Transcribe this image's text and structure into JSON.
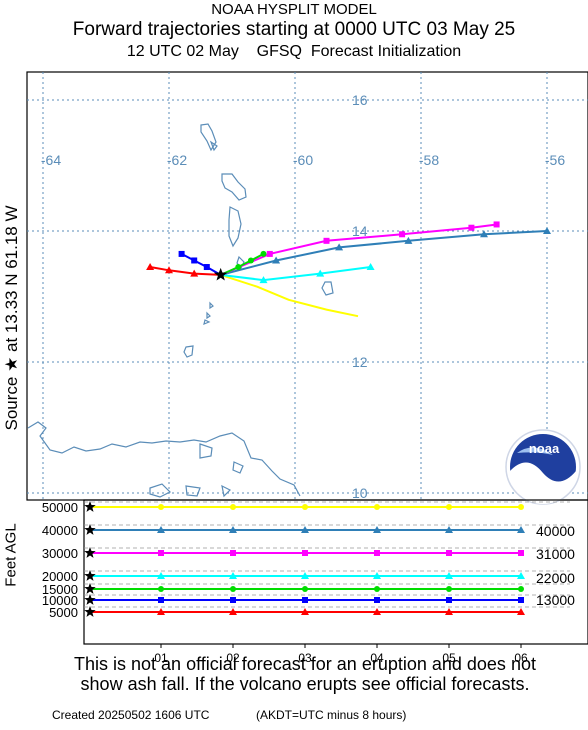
{
  "header": {
    "title_line1": "NOAA HYSPLIT MODEL",
    "title_line2": "Forward trajectories starting at 0000 UTC 03 May 25",
    "title_line3": "12 UTC 02 May    GFSQ  Forecast Initialization"
  },
  "side_label": "Source ★ at    13.33 N   61.18 W",
  "altitude_axis_label": "Feet AGL",
  "logo_text": "noaa",
  "disclaimer": {
    "line1": "This is not an official forecast for an eruption and does not",
    "line2": "show ash fall. If the volcano erupts see official forecasts."
  },
  "footer": {
    "created": "Created 20250502 1606 UTC",
    "timezone_note": "(AKDT=UTC minus 8 hours)"
  },
  "colors": {
    "graticule": "#5b8db8",
    "coastline": "#5b8db8",
    "yellow": "#ffff00",
    "steelblue": "#2f7fb7",
    "magenta": "#ff00ff",
    "cyan": "#00ffff",
    "green": "#00dd00",
    "blue": "#0000ff",
    "red": "#ff0000",
    "noaa_blue": "#1f3f9f"
  },
  "chart_data": [
    {
      "type": "scatter",
      "subtype": "trajectory-map",
      "source": {
        "lat": 13.33,
        "lon": -61.18
      },
      "lon_ticks": [
        -64,
        -62,
        -60,
        -58,
        -56
      ],
      "lat_ticks": [
        16,
        14,
        12,
        10
      ],
      "lon_range": [
        -64.3,
        -55.3
      ],
      "lat_range": [
        9.9,
        16.5
      ],
      "series": [
        {
          "altitude_ft": 50000,
          "color": "yellow",
          "marker": "none",
          "points": [
            [
              -61.18,
              13.33
            ],
            [
              -60.6,
              13.15
            ],
            [
              -60.1,
              12.95
            ],
            [
              -59.5,
              12.8
            ],
            [
              -59.0,
              12.7
            ]
          ]
        },
        {
          "altitude_ft": 40000,
          "color": "steelblue",
          "marker": "triangle",
          "points": [
            [
              -61.18,
              13.33
            ],
            [
              -60.3,
              13.55
            ],
            [
              -59.3,
              13.75
            ],
            [
              -58.2,
              13.85
            ],
            [
              -57.0,
              13.95
            ],
            [
              -56.0,
              14.0
            ]
          ]
        },
        {
          "altitude_ft": 30000,
          "color": "magenta",
          "marker": "square",
          "points": [
            [
              -61.18,
              13.33
            ],
            [
              -60.4,
              13.65
            ],
            [
              -59.5,
              13.85
            ],
            [
              -58.3,
              13.95
            ],
            [
              -57.2,
              14.05
            ],
            [
              -56.8,
              14.1
            ]
          ]
        },
        {
          "altitude_ft": 20000,
          "color": "cyan",
          "marker": "triangle",
          "points": [
            [
              -61.18,
              13.33
            ],
            [
              -60.5,
              13.25
            ],
            [
              -59.6,
              13.35
            ],
            [
              -58.8,
              13.45
            ]
          ]
        },
        {
          "altitude_ft": 15000,
          "color": "green",
          "marker": "circle",
          "points": [
            [
              -61.18,
              13.33
            ],
            [
              -60.9,
              13.45
            ],
            [
              -60.7,
              13.55
            ],
            [
              -60.5,
              13.65
            ]
          ]
        },
        {
          "altitude_ft": 10000,
          "color": "blue",
          "marker": "square",
          "points": [
            [
              -61.18,
              13.33
            ],
            [
              -61.4,
              13.45
            ],
            [
              -61.6,
              13.55
            ],
            [
              -61.8,
              13.65
            ]
          ]
        },
        {
          "altitude_ft": 5000,
          "color": "red",
          "marker": "triangle",
          "points": [
            [
              -61.18,
              13.33
            ],
            [
              -61.6,
              13.35
            ],
            [
              -62.0,
              13.4
            ],
            [
              -62.3,
              13.45
            ]
          ]
        }
      ]
    },
    {
      "type": "line",
      "subtype": "altitude-vs-time",
      "x_ticks": [
        "01",
        "02",
        "03",
        "04",
        "05",
        "06"
      ],
      "y_ticks_left": [
        50000,
        40000,
        30000,
        20000,
        15000,
        10000,
        5000
      ],
      "y_ticks_right": [
        40000,
        31000,
        22000,
        13000
      ],
      "ylabel": "Feet AGL",
      "series": [
        {
          "start_ft": 50000,
          "color": "yellow",
          "marker": "circle",
          "values": [
            50000,
            50000,
            50000,
            50000,
            50000,
            50000
          ]
        },
        {
          "start_ft": 40000,
          "color": "steelblue",
          "marker": "triangle",
          "values": [
            40000,
            40000,
            40000,
            40000,
            40000,
            40000
          ]
        },
        {
          "start_ft": 30000,
          "color": "magenta",
          "marker": "square",
          "values": [
            30000,
            30000,
            30000,
            30000,
            30000,
            30000
          ]
        },
        {
          "start_ft": 20000,
          "color": "cyan",
          "marker": "triangle",
          "values": [
            20000,
            20000,
            20000,
            20000,
            20000,
            20000
          ]
        },
        {
          "start_ft": 15000,
          "color": "green",
          "marker": "circle",
          "values": [
            15000,
            15000,
            15000,
            15000,
            15000,
            15000
          ]
        },
        {
          "start_ft": 10000,
          "color": "blue",
          "marker": "square",
          "values": [
            10000,
            10000,
            10000,
            10000,
            10000,
            10000
          ]
        },
        {
          "start_ft": 5000,
          "color": "red",
          "marker": "triangle",
          "values": [
            5000,
            5000,
            5000,
            5000,
            5000,
            5000
          ]
        }
      ]
    }
  ]
}
